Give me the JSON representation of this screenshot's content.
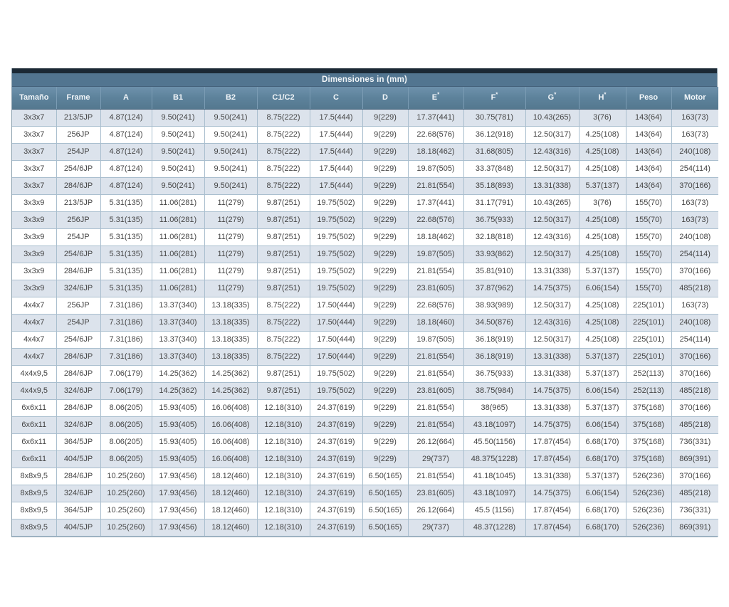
{
  "table": {
    "title": "Dimensiones in (mm)",
    "columns": [
      "Tamaño",
      "Frame",
      "A",
      "B1",
      "B2",
      "C1/C2",
      "C",
      "D",
      "E*",
      "F*",
      "G*",
      "H*",
      "Peso",
      "Motor"
    ],
    "rows": [
      [
        "3x3x7",
        "213/5JP",
        "4.87(124)",
        "9.50(241)",
        "9.50(241)",
        "8.75(222)",
        "17.5(444)",
        "9(229)",
        "17.37(441)",
        "30.75(781)",
        "10.43(265)",
        "3(76)",
        "143(64)",
        "163(73)"
      ],
      [
        "3x3x7",
        "256JP",
        "4.87(124)",
        "9.50(241)",
        "9.50(241)",
        "8.75(222)",
        "17.5(444)",
        "9(229)",
        "22.68(576)",
        "36.12(918)",
        "12.50(317)",
        "4.25(108)",
        "143(64)",
        "163(73)"
      ],
      [
        "3x3x7",
        "254JP",
        "4.87(124)",
        "9.50(241)",
        "9.50(241)",
        "8.75(222)",
        "17.5(444)",
        "9(229)",
        "18.18(462)",
        "31.68(805)",
        "12.43(316)",
        "4.25(108)",
        "143(64)",
        "240(108)"
      ],
      [
        "3x3x7",
        "254/6JP",
        "4.87(124)",
        "9.50(241)",
        "9.50(241)",
        "8.75(222)",
        "17.5(444)",
        "9(229)",
        "19.87(505)",
        "33.37(848)",
        "12.50(317)",
        "4.25(108)",
        "143(64)",
        "254(114)"
      ],
      [
        "3x3x7",
        "284/6JP",
        "4.87(124)",
        "9.50(241)",
        "9.50(241)",
        "8.75(222)",
        "17.5(444)",
        "9(229)",
        "21.81(554)",
        "35.18(893)",
        "13.31(338)",
        "5.37(137)",
        "143(64)",
        "370(166)"
      ],
      [
        "3x3x9",
        "213/5JP",
        "5.31(135)",
        "11.06(281)",
        "11(279)",
        "9.87(251)",
        "19.75(502)",
        "9(229)",
        "17.37(441)",
        "31.17(791)",
        "10.43(265)",
        "3(76)",
        "155(70)",
        "163(73)"
      ],
      [
        "3x3x9",
        "256JP",
        "5.31(135)",
        "11.06(281)",
        "11(279)",
        "9.87(251)",
        "19.75(502)",
        "9(229)",
        "22.68(576)",
        "36.75(933)",
        "12.50(317)",
        "4.25(108)",
        "155(70)",
        "163(73)"
      ],
      [
        "3x3x9",
        "254JP",
        "5.31(135)",
        "11.06(281)",
        "11(279)",
        "9.87(251)",
        "19.75(502)",
        "9(229)",
        "18.18(462)",
        "32.18(818)",
        "12.43(316)",
        "4.25(108)",
        "155(70)",
        "240(108)"
      ],
      [
        "3x3x9",
        "254/6JP",
        "5.31(135)",
        "11.06(281)",
        "11(279)",
        "9.87(251)",
        "19.75(502)",
        "9(229)",
        "19.87(505)",
        "33.93(862)",
        "12.50(317)",
        "4.25(108)",
        "155(70)",
        "254(114)"
      ],
      [
        "3x3x9",
        "284/6JP",
        "5.31(135)",
        "11.06(281)",
        "11(279)",
        "9.87(251)",
        "19.75(502)",
        "9(229)",
        "21.81(554)",
        "35.81(910)",
        "13.31(338)",
        "5.37(137)",
        "155(70)",
        "370(166)"
      ],
      [
        "3x3x9",
        "324/6JP",
        "5.31(135)",
        "11.06(281)",
        "11(279)",
        "9.87(251)",
        "19.75(502)",
        "9(229)",
        "23.81(605)",
        "37.87(962)",
        "14.75(375)",
        "6.06(154)",
        "155(70)",
        "485(218)"
      ],
      [
        "4x4x7",
        "256JP",
        "7.31(186)",
        "13.37(340)",
        "13.18(335)",
        "8.75(222)",
        "17.50(444)",
        "9(229)",
        "22.68(576)",
        "38.93(989)",
        "12.50(317)",
        "4.25(108)",
        "225(101)",
        "163(73)"
      ],
      [
        "4x4x7",
        "254JP",
        "7.31(186)",
        "13.37(340)",
        "13.18(335)",
        "8.75(222)",
        "17.50(444)",
        "9(229)",
        "18.18(460)",
        "34.50(876)",
        "12.43(316)",
        "4.25(108)",
        "225(101)",
        "240(108)"
      ],
      [
        "4x4x7",
        "254/6JP",
        "7.31(186)",
        "13.37(340)",
        "13.18(335)",
        "8.75(222)",
        "17.50(444)",
        "9(229)",
        "19.87(505)",
        "36.18(919)",
        "12.50(317)",
        "4.25(108)",
        "225(101)",
        "254(114)"
      ],
      [
        "4x4x7",
        "284/6JP",
        "7.31(186)",
        "13.37(340)",
        "13.18(335)",
        "8.75(222)",
        "17.50(444)",
        "9(229)",
        "21.81(554)",
        "36.18(919)",
        "13.31(338)",
        "5.37(137)",
        "225(101)",
        "370(166)"
      ],
      [
        "4x4x9,5",
        "284/6JP",
        "7.06(179)",
        "14.25(362)",
        "14.25(362)",
        "9.87(251)",
        "19.75(502)",
        "9(229)",
        "21.81(554)",
        "36.75(933)",
        "13.31(338)",
        "5.37(137)",
        "252(113)",
        "370(166)"
      ],
      [
        "4x4x9,5",
        "324/6JP",
        "7.06(179)",
        "14.25(362)",
        "14.25(362)",
        "9.87(251)",
        "19.75(502)",
        "9(229)",
        "23.81(605)",
        "38.75(984)",
        "14.75(375)",
        "6.06(154)",
        "252(113)",
        "485(218)"
      ],
      [
        "6x6x11",
        "284/6JP",
        "8.06(205)",
        "15.93(405)",
        "16.06(408)",
        "12.18(310)",
        "24.37(619)",
        "9(229)",
        "21.81(554)",
        "38(965)",
        "13.31(338)",
        "5.37(137)",
        "375(168)",
        "370(166)"
      ],
      [
        "6x6x11",
        "324/6JP",
        "8.06(205)",
        "15.93(405)",
        "16.06(408)",
        "12.18(310)",
        "24.37(619)",
        "9(229)",
        "21.81(554)",
        "43.18(1097)",
        "14.75(375)",
        "6.06(154)",
        "375(168)",
        "485(218)"
      ],
      [
        "6x6x11",
        "364/5JP",
        "8.06(205)",
        "15.93(405)",
        "16.06(408)",
        "12.18(310)",
        "24.37(619)",
        "9(229)",
        "26.12(664)",
        "45.50(1156)",
        "17.87(454)",
        "6.68(170)",
        "375(168)",
        "736(331)"
      ],
      [
        "6x6x11",
        "404/5JP",
        "8.06(205)",
        "15.93(405)",
        "16.06(408)",
        "12.18(310)",
        "24.37(619)",
        "9(229)",
        "29(737)",
        "48.375(1228)",
        "17.87(454)",
        "6.68(170)",
        "375(168)",
        "869(391)"
      ],
      [
        "8x8x9,5",
        "284/6JP",
        "10.25(260)",
        "17.93(456)",
        "18.12(460)",
        "12.18(310)",
        "24.37(619)",
        "6.50(165)",
        "21.81(554)",
        "41.18(1045)",
        "13.31(338)",
        "5.37(137)",
        "526(236)",
        "370(166)"
      ],
      [
        "8x8x9,5",
        "324/6JP",
        "10.25(260)",
        "17.93(456)",
        "18.12(460)",
        "12.18(310)",
        "24.37(619)",
        "6.50(165)",
        "23.81(605)",
        "43.18(1097)",
        "14.75(375)",
        "6.06(154)",
        "526(236)",
        "485(218)"
      ],
      [
        "8x8x9,5",
        "364/5JP",
        "10.25(260)",
        "17.93(456)",
        "18.12(460)",
        "12.18(310)",
        "24.37(619)",
        "6.50(165)",
        "26.12(664)",
        "45.5 (1156)",
        "17.87(454)",
        "6.68(170)",
        "526(236)",
        "736(331)"
      ],
      [
        "8x8x9,5",
        "404/5JP",
        "10.25(260)",
        "17.93(456)",
        "18.12(460)",
        "12.18(310)",
        "24.37(619)",
        "6.50(165)",
        "29(737)",
        "48.37(1228)",
        "17.87(454)",
        "6.68(170)",
        "526(236)",
        "869(391)"
      ]
    ],
    "colors": {
      "top_strip": "#1b2935",
      "title_bg": "#527590",
      "header_bg": "#5d829b",
      "alt_row_bg": "#dce3ec",
      "cell_border": "#a9bece",
      "outer_border": "#8ba0ae",
      "header_text": "#f2f6f9",
      "cell_text": "#454545"
    }
  }
}
